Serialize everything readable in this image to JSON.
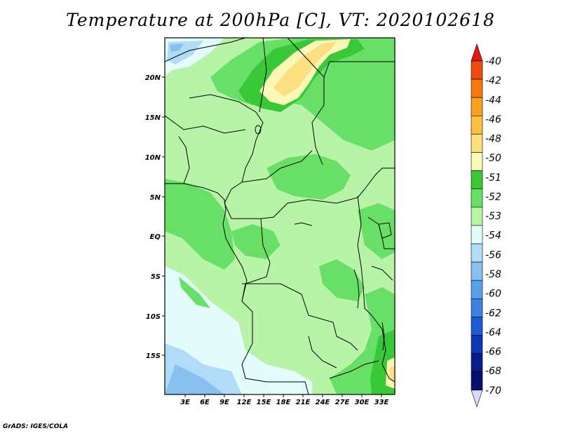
{
  "title": "Temperature at 200hPa [C], VT: 2020102618",
  "credit": "GrADS: IGES/COLA",
  "map": {
    "lat_labels": [
      "20N",
      "15N",
      "10N",
      "5N",
      "EQ",
      "5S",
      "10S",
      "15S"
    ],
    "lon_labels": [
      "3E",
      "6E",
      "9E",
      "12E",
      "15E",
      "18E",
      "21E",
      "24E",
      "27E",
      "30E",
      "33E"
    ]
  },
  "colorbar": {
    "labels": [
      "-40",
      "-42",
      "-44",
      "-46",
      "-48",
      "-50",
      "-51",
      "-52",
      "-53",
      "-54",
      "-56",
      "-58",
      "-60",
      "-62",
      "-64",
      "-66",
      "-68",
      "-70"
    ],
    "colors": [
      "#e01818",
      "#f04a10",
      "#f8780c",
      "#f8a020",
      "#fcc040",
      "#fce080",
      "#fcf8b8",
      "#38c838",
      "#68e068",
      "#b8f4a8",
      "#e4fcfc",
      "#b0dcf8",
      "#88c0f0",
      "#58a0ec",
      "#3c80e0",
      "#1c5cd0",
      "#0c38b4",
      "#081c8c",
      "#06106c",
      "#d8d8f8"
    ]
  }
}
